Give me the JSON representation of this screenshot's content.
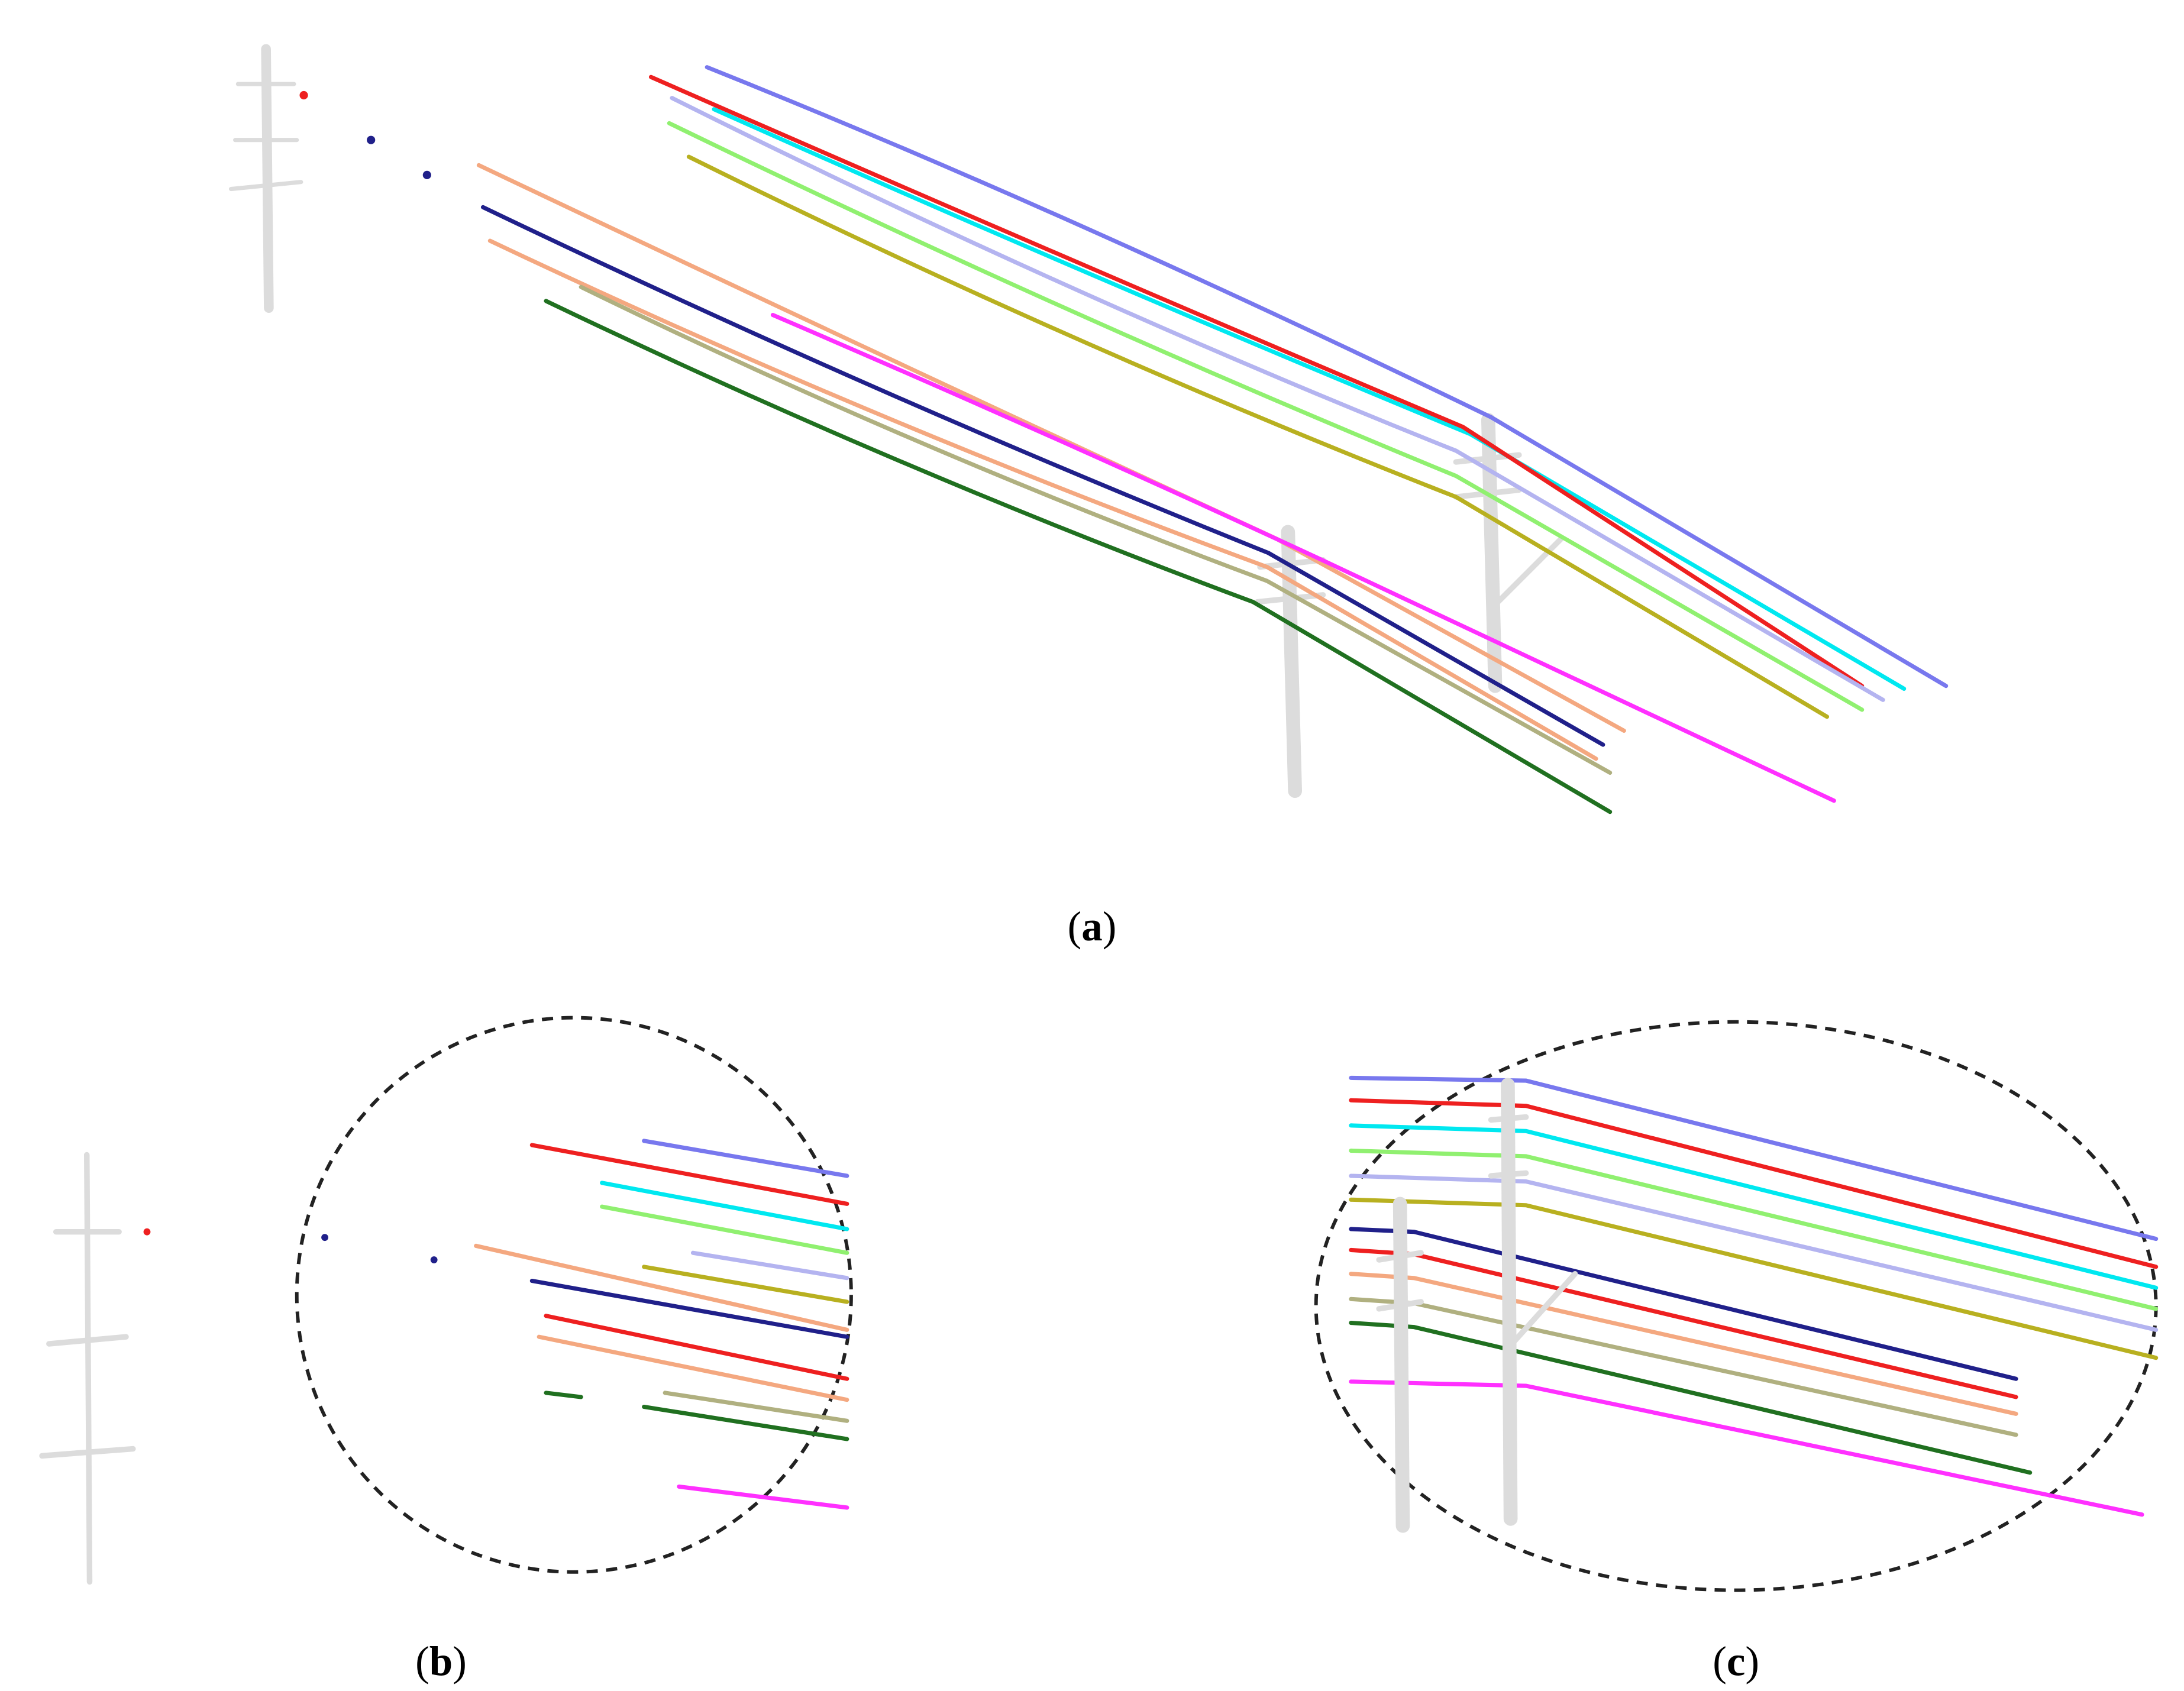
{
  "figure": {
    "panels": [
      {
        "label": "(a)"
      },
      {
        "label": "(b)"
      },
      {
        "label": "(c)"
      }
    ]
  }
}
